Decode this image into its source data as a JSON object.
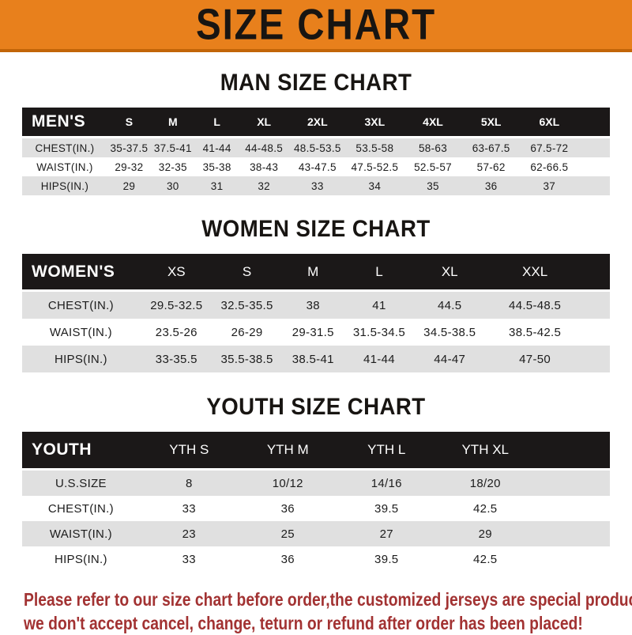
{
  "banner": {
    "title": "SIZE CHART"
  },
  "sections": [
    {
      "id": "men",
      "title": "MAN SIZE CHART",
      "corner": "MEN'S",
      "columns": [
        "S",
        "M",
        "L",
        "XL",
        "2XL",
        "3XL",
        "4XL",
        "5XL",
        "6XL"
      ],
      "rows": [
        {
          "label": "CHEST(IN.)",
          "values": [
            "35-37.5",
            "37.5-41",
            "41-44",
            "44-48.5",
            "48.5-53.5",
            "53.5-58",
            "58-63",
            "63-67.5",
            "67.5-72"
          ]
        },
        {
          "label": "WAIST(IN.)",
          "values": [
            "29-32",
            "32-35",
            "35-38",
            "38-43",
            "43-47.5",
            "47.5-52.5",
            "52.5-57",
            "57-62",
            "62-66.5"
          ]
        },
        {
          "label": "HIPS(IN.)",
          "values": [
            "29",
            "30",
            "31",
            "32",
            "33",
            "34",
            "35",
            "36",
            "37"
          ]
        }
      ]
    },
    {
      "id": "women",
      "title": "WOMEN SIZE CHART",
      "corner": "WOMEN'S",
      "columns": [
        "XS",
        "S",
        "M",
        "L",
        "XL",
        "XXL"
      ],
      "rows": [
        {
          "label": "CHEST(IN.)",
          "values": [
            "29.5-32.5",
            "32.5-35.5",
            "38",
            "41",
            "44.5",
            "44.5-48.5"
          ]
        },
        {
          "label": "WAIST(IN.)",
          "values": [
            "23.5-26",
            "26-29",
            "29-31.5",
            "31.5-34.5",
            "34.5-38.5",
            "38.5-42.5"
          ]
        },
        {
          "label": "HIPS(IN.)",
          "values": [
            "33-35.5",
            "35.5-38.5",
            "38.5-41",
            "41-44",
            "44-47",
            "47-50"
          ]
        }
      ]
    },
    {
      "id": "youth",
      "title": "YOUTH SIZE CHART",
      "corner": "YOUTH",
      "columns": [
        "YTH S",
        "YTH M",
        "YTH L",
        "YTH XL"
      ],
      "rows": [
        {
          "label": "U.S.SIZE",
          "values": [
            "8",
            "10/12",
            "14/16",
            "18/20"
          ]
        },
        {
          "label": "CHEST(IN.)",
          "values": [
            "33",
            "36",
            "39.5",
            "42.5"
          ]
        },
        {
          "label": "WAIST(IN.)",
          "values": [
            "23",
            "25",
            "27",
            "29"
          ]
        },
        {
          "label": "HIPS(IN.)",
          "values": [
            "33",
            "36",
            "39.5",
            "42.5"
          ]
        }
      ]
    }
  ],
  "footer": {
    "line1": "Please refer to our size chart before order,the customized jerseys are special products,",
    "line2": "we don't accept cancel, change, teturn or refund after order has been placed!"
  },
  "colors": {
    "banner_orange": "#E8801C",
    "banner_edge": "#C26508",
    "header_black": "#1B1818",
    "row_gray": "#E0E0E0",
    "title_black": "#181512",
    "notice_red": "#A23232"
  }
}
